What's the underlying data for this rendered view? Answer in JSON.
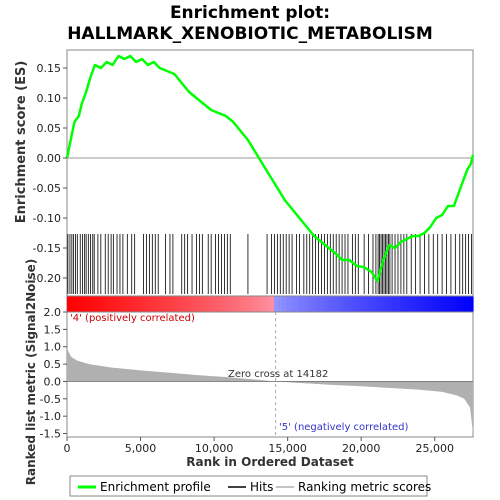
{
  "chart_data": {
    "type": "line",
    "title_line1": "Enrichment plot:",
    "title_line2": "HALLMARK_XENOBIOTIC_METABOLISM",
    "ylabel_top": "Enrichment score (ES)",
    "ylabel_bottom": "Ranked list metric (Signal2Noise)",
    "xlabel": "Rank in Ordered Dataset",
    "xlim": [
      0,
      27600
    ],
    "es_ylim": [
      -0.23,
      0.18
    ],
    "metric_ylim": [
      -1.6,
      2.0
    ],
    "x_ticks": [
      0,
      5000,
      10000,
      15000,
      20000,
      25000
    ],
    "x_tick_labels": [
      "0",
      "5,000",
      "10,000",
      "15,000",
      "20,000",
      "25,000"
    ],
    "es_ticks": [
      0.15,
      0.1,
      0.05,
      0.0,
      -0.05,
      -0.1,
      -0.15,
      -0.2
    ],
    "es_tick_labels": [
      "0.15",
      "0.10",
      "0.05",
      "0.00",
      "-0.05",
      "-0.10",
      "-0.15",
      "-0.20"
    ],
    "metric_ticks": [
      2.0,
      1.5,
      1.0,
      0.5,
      0.0,
      -0.5,
      -1.0,
      -1.5
    ],
    "metric_tick_labels": [
      "2.0",
      "1.5",
      "1.0",
      "0.5",
      "0.0",
      "-0.5",
      "-1.0",
      "-1.5"
    ],
    "zero_cross_label": "Zero cross at 14182",
    "zero_cross_x": 14182,
    "pos_label": "'4' (positively correlated)",
    "neg_label": "'5' (negatively correlated)",
    "legend": [
      "Enrichment profile",
      "Hits",
      "Ranking metric scores"
    ],
    "colors": {
      "es_line": "#00ff00",
      "pos": "#ff0000",
      "neg": "#0000ff",
      "metric": "#b0b0b0",
      "hit": "#000000"
    },
    "es_curve": [
      [
        0,
        0.0
      ],
      [
        250,
        0.03
      ],
      [
        500,
        0.06
      ],
      [
        800,
        0.07
      ],
      [
        1000,
        0.09
      ],
      [
        1300,
        0.11
      ],
      [
        1600,
        0.135
      ],
      [
        1900,
        0.155
      ],
      [
        2300,
        0.15
      ],
      [
        2700,
        0.16
      ],
      [
        3100,
        0.155
      ],
      [
        3500,
        0.17
      ],
      [
        3900,
        0.165
      ],
      [
        4300,
        0.17
      ],
      [
        4700,
        0.16
      ],
      [
        5100,
        0.165
      ],
      [
        5500,
        0.155
      ],
      [
        5900,
        0.16
      ],
      [
        6300,
        0.15
      ],
      [
        6800,
        0.145
      ],
      [
        7300,
        0.14
      ],
      [
        7800,
        0.125
      ],
      [
        8300,
        0.11
      ],
      [
        8800,
        0.1
      ],
      [
        9300,
        0.09
      ],
      [
        9800,
        0.08
      ],
      [
        10300,
        0.075
      ],
      [
        10800,
        0.07
      ],
      [
        11300,
        0.06
      ],
      [
        11800,
        0.045
      ],
      [
        12300,
        0.03
      ],
      [
        12800,
        0.01
      ],
      [
        13300,
        -0.01
      ],
      [
        13800,
        -0.03
      ],
      [
        14300,
        -0.05
      ],
      [
        14800,
        -0.07
      ],
      [
        15300,
        -0.085
      ],
      [
        15800,
        -0.1
      ],
      [
        16300,
        -0.115
      ],
      [
        16800,
        -0.13
      ],
      [
        17300,
        -0.14
      ],
      [
        17800,
        -0.15
      ],
      [
        18300,
        -0.16
      ],
      [
        18700,
        -0.17
      ],
      [
        19200,
        -0.17
      ],
      [
        19700,
        -0.18
      ],
      [
        20200,
        -0.182
      ],
      [
        20700,
        -0.19
      ],
      [
        21100,
        -0.205
      ],
      [
        21500,
        -0.17
      ],
      [
        21900,
        -0.145
      ],
      [
        22300,
        -0.15
      ],
      [
        22700,
        -0.14
      ],
      [
        23100,
        -0.135
      ],
      [
        23500,
        -0.13
      ],
      [
        23900,
        -0.13
      ],
      [
        24300,
        -0.125
      ],
      [
        24700,
        -0.115
      ],
      [
        25100,
        -0.1
      ],
      [
        25500,
        -0.095
      ],
      [
        25900,
        -0.08
      ],
      [
        26300,
        -0.08
      ],
      [
        26600,
        -0.06
      ],
      [
        26900,
        -0.04
      ],
      [
        27200,
        -0.02
      ],
      [
        27450,
        -0.01
      ],
      [
        27600,
        0.005
      ]
    ],
    "metric_curve": [
      [
        0,
        1.0
      ],
      [
        100,
        0.85
      ],
      [
        300,
        0.7
      ],
      [
        700,
        0.6
      ],
      [
        1500,
        0.5
      ],
      [
        3000,
        0.4
      ],
      [
        5000,
        0.32
      ],
      [
        7000,
        0.25
      ],
      [
        9000,
        0.18
      ],
      [
        11000,
        0.12
      ],
      [
        13000,
        0.05
      ],
      [
        14182,
        0.0
      ],
      [
        16000,
        -0.05
      ],
      [
        18000,
        -0.1
      ],
      [
        20000,
        -0.14
      ],
      [
        22000,
        -0.19
      ],
      [
        24000,
        -0.24
      ],
      [
        25500,
        -0.3
      ],
      [
        26500,
        -0.4
      ],
      [
        27000,
        -0.5
      ],
      [
        27400,
        -0.75
      ],
      [
        27600,
        -1.5
      ]
    ],
    "hits": [
      60,
      200,
      330,
      450,
      580,
      700,
      900,
      1050,
      1200,
      1300,
      1450,
      1600,
      1750,
      1850,
      2100,
      2300,
      2600,
      2800,
      3000,
      3150,
      3400,
      3600,
      3800,
      4100,
      4400,
      4600,
      5200,
      5400,
      5600,
      5800,
      6000,
      6200,
      6700,
      7000,
      7200,
      7800,
      8000,
      8200,
      8500,
      8800,
      9000,
      9200,
      9600,
      9800,
      10100,
      10300,
      10500,
      10700,
      10900,
      11100,
      12300,
      13600,
      13900,
      14100,
      14300,
      14500,
      14700,
      14900,
      15100,
      15300,
      15600,
      15800,
      16100,
      16300,
      16500,
      16700,
      16900,
      17100,
      17300,
      17500,
      17700,
      17900,
      18100,
      18300,
      18500,
      18700,
      18900,
      19100,
      19400,
      19600,
      19800,
      20200,
      20500,
      20800,
      21000,
      21150,
      21250,
      21350,
      21450,
      21550,
      21650,
      21750,
      21850,
      21950,
      22100,
      22300,
      22500,
      22700,
      22900,
      23100,
      23400,
      23700,
      24000,
      24300,
      24600,
      24900,
      25200,
      25500,
      25800,
      26100,
      26400,
      26700,
      26900,
      27100,
      27300,
      27500
    ]
  }
}
